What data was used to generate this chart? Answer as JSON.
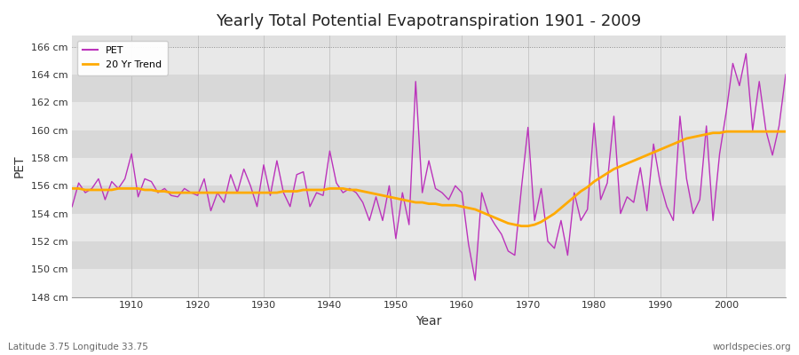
{
  "title": "Yearly Total Potential Evapotranspiration 1901 - 2009",
  "xlabel": "Year",
  "ylabel": "PET",
  "subtitle_left": "Latitude 3.75 Longitude 33.75",
  "subtitle_right": "worldspecies.org",
  "ylim": [
    148,
    166.8
  ],
  "yticks": [
    148,
    150,
    152,
    154,
    156,
    158,
    160,
    162,
    164,
    166
  ],
  "pet_color": "#bb33bb",
  "trend_color": "#ffaa00",
  "fig_bg_color": "#ffffff",
  "plot_bg_color": "#e0e0e0",
  "stripe_color1": "#e8e8e8",
  "stripe_color2": "#d8d8d8",
  "years": [
    1901,
    1902,
    1903,
    1904,
    1905,
    1906,
    1907,
    1908,
    1909,
    1910,
    1911,
    1912,
    1913,
    1914,
    1915,
    1916,
    1917,
    1918,
    1919,
    1920,
    1921,
    1922,
    1923,
    1924,
    1925,
    1926,
    1927,
    1928,
    1929,
    1930,
    1931,
    1932,
    1933,
    1934,
    1935,
    1936,
    1937,
    1938,
    1939,
    1940,
    1941,
    1942,
    1943,
    1944,
    1945,
    1946,
    1947,
    1948,
    1949,
    1950,
    1951,
    1952,
    1953,
    1954,
    1955,
    1956,
    1957,
    1958,
    1959,
    1960,
    1961,
    1962,
    1963,
    1964,
    1965,
    1966,
    1967,
    1968,
    1969,
    1970,
    1971,
    1972,
    1973,
    1974,
    1975,
    1976,
    1977,
    1978,
    1979,
    1980,
    1981,
    1982,
    1983,
    1984,
    1985,
    1986,
    1987,
    1988,
    1989,
    1990,
    1991,
    1992,
    1993,
    1994,
    1995,
    1996,
    1997,
    1998,
    1999,
    2000,
    2001,
    2002,
    2003,
    2004,
    2005,
    2006,
    2007,
    2008,
    2009
  ],
  "pet": [
    154.5,
    156.2,
    155.5,
    155.8,
    156.5,
    155.0,
    156.3,
    155.8,
    156.5,
    158.3,
    155.2,
    156.5,
    156.3,
    155.5,
    155.8,
    155.3,
    155.2,
    155.8,
    155.5,
    155.3,
    156.5,
    154.2,
    155.5,
    154.8,
    156.8,
    155.5,
    157.2,
    156.0,
    154.5,
    157.5,
    155.3,
    157.8,
    155.5,
    154.5,
    156.8,
    157.0,
    154.5,
    155.5,
    155.3,
    158.5,
    156.2,
    155.5,
    155.8,
    155.5,
    154.8,
    153.5,
    155.2,
    153.5,
    156.0,
    152.2,
    155.5,
    153.2,
    163.5,
    155.5,
    157.8,
    155.8,
    155.5,
    155.0,
    156.0,
    155.5,
    151.8,
    149.2,
    155.5,
    154.0,
    153.2,
    152.5,
    151.3,
    151.0,
    155.8,
    160.2,
    153.5,
    155.8,
    152.0,
    151.5,
    153.5,
    151.0,
    155.5,
    153.5,
    154.3,
    160.5,
    155.0,
    156.2,
    161.0,
    154.0,
    155.2,
    154.8,
    157.3,
    154.2,
    159.0,
    156.2,
    154.5,
    153.5,
    161.0,
    156.5,
    154.0,
    155.0,
    160.3,
    153.5,
    158.3,
    161.3,
    164.8,
    163.2,
    165.5,
    160.0,
    163.5,
    160.0,
    158.2,
    160.3,
    164.0
  ],
  "trend": [
    155.8,
    155.8,
    155.7,
    155.7,
    155.7,
    155.7,
    155.7,
    155.8,
    155.8,
    155.8,
    155.8,
    155.7,
    155.7,
    155.6,
    155.6,
    155.5,
    155.5,
    155.5,
    155.5,
    155.5,
    155.5,
    155.5,
    155.5,
    155.5,
    155.5,
    155.5,
    155.5,
    155.5,
    155.5,
    155.5,
    155.5,
    155.5,
    155.6,
    155.6,
    155.6,
    155.7,
    155.7,
    155.7,
    155.7,
    155.8,
    155.8,
    155.8,
    155.7,
    155.7,
    155.6,
    155.5,
    155.4,
    155.3,
    155.2,
    155.1,
    155.0,
    154.9,
    154.8,
    154.8,
    154.7,
    154.7,
    154.6,
    154.6,
    154.6,
    154.5,
    154.4,
    154.3,
    154.1,
    153.9,
    153.7,
    153.5,
    153.3,
    153.2,
    153.1,
    153.1,
    153.2,
    153.4,
    153.7,
    154.0,
    154.4,
    154.8,
    155.2,
    155.6,
    155.9,
    156.3,
    156.6,
    156.9,
    157.2,
    157.4,
    157.6,
    157.8,
    158.0,
    158.2,
    158.4,
    158.6,
    158.8,
    159.0,
    159.2,
    159.4,
    159.5,
    159.6,
    159.7,
    159.8,
    159.8,
    159.9,
    159.9,
    159.9,
    159.9,
    159.9,
    159.9,
    159.9,
    159.9,
    159.9,
    159.9
  ]
}
